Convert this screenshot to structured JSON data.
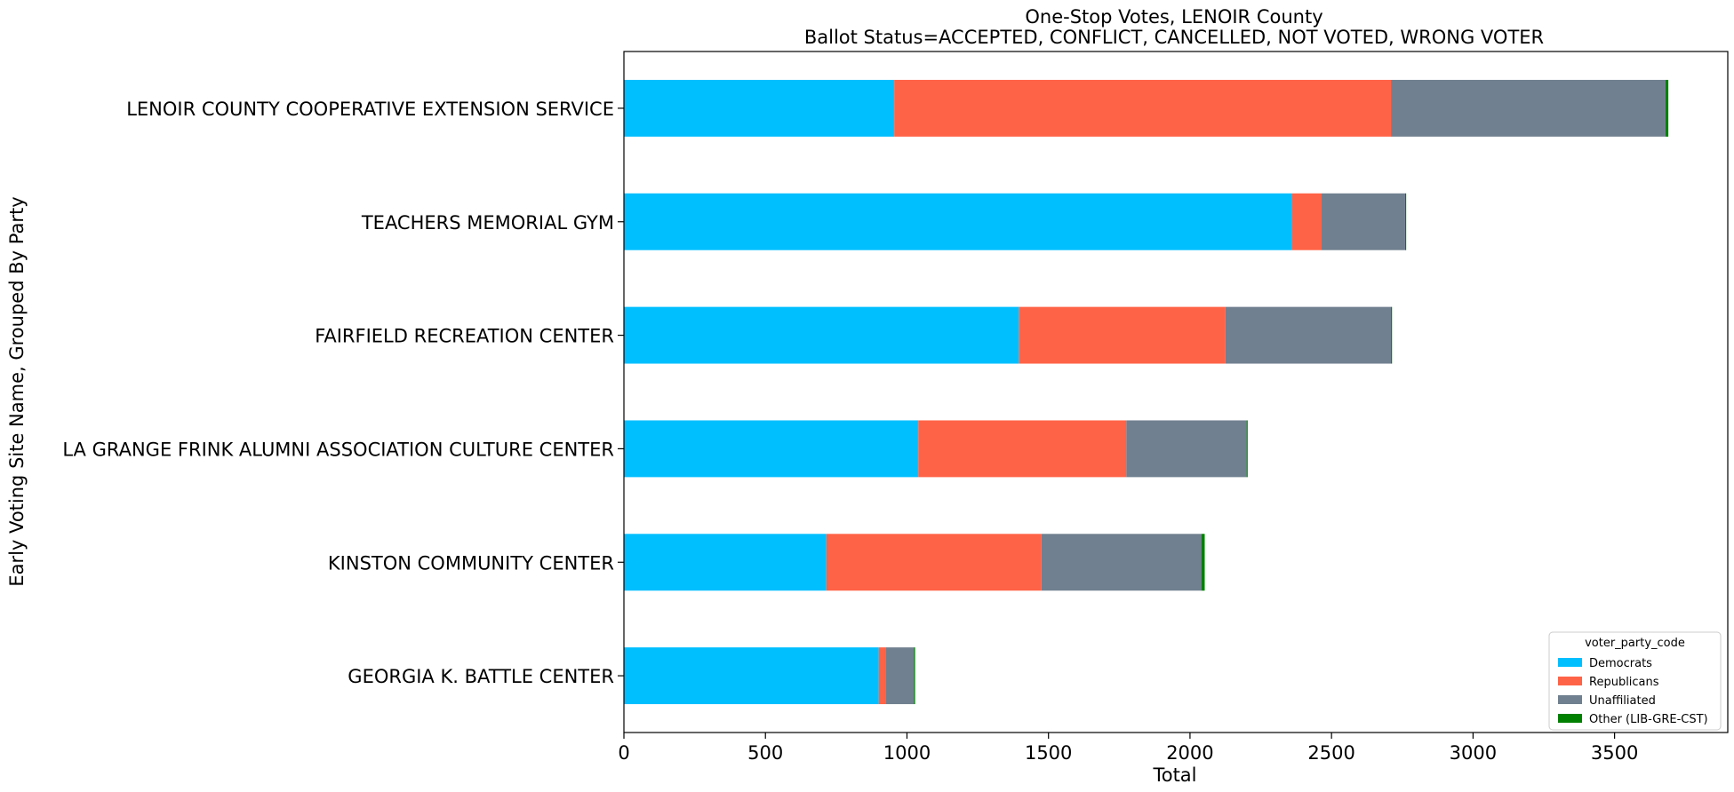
{
  "chart_data": {
    "type": "bar",
    "orientation": "horizontal",
    "stacked": true,
    "title": "One-Stop Votes, LENOIR County",
    "subtitle": "Ballot Status=ACCEPTED, CONFLICT, CANCELLED, NOT VOTED, WRONG VOTER",
    "xlabel": "Total",
    "ylabel": "Early Voting Site Name, Grouped By Party",
    "xlim": [
      0,
      3900
    ],
    "xticks": [
      0,
      500,
      1000,
      1500,
      2000,
      2500,
      3000,
      3500
    ],
    "grid": false,
    "categories": [
      "LENOIR COUNTY COOPERATIVE EXTENSION SERVICE",
      "TEACHERS MEMORIAL GYM",
      "FAIRFIELD RECREATION CENTER",
      "LA GRANGE FRINK ALUMNI ASSOCIATION CULTURE CENTER",
      "KINSTON COMMUNITY CENTER",
      "GEORGIA K. BATTLE CENTER"
    ],
    "legend": {
      "title": "voter_party_code",
      "position": "lower-right"
    },
    "series": [
      {
        "name": "Democrats",
        "color": "#00bfff",
        "values": [
          955,
          2360,
          1395,
          1040,
          715,
          900
        ]
      },
      {
        "name": "Republicans",
        "color": "#ff6347",
        "values": [
          1755,
          105,
          730,
          735,
          760,
          25
        ]
      },
      {
        "name": "Unaffiliated",
        "color": "#708090",
        "values": [
          970,
          295,
          585,
          425,
          565,
          100
        ]
      },
      {
        "name": "Other (LIB-GRE-CST)",
        "color": "#008000",
        "values": [
          10,
          3,
          3,
          3,
          12,
          2
        ]
      }
    ]
  }
}
